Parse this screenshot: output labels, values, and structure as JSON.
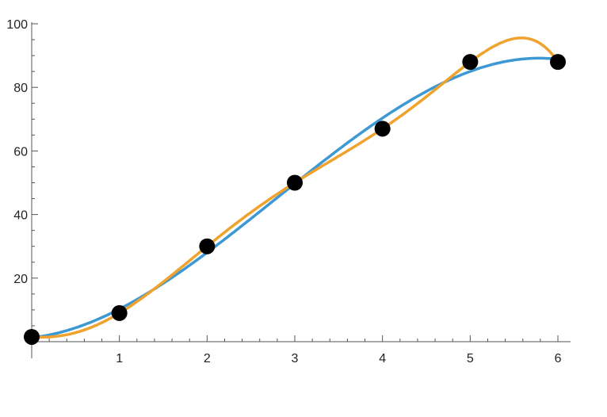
{
  "chart_data": {
    "type": "line",
    "title": "",
    "xlabel": "",
    "ylabel": "",
    "xlim": [
      0,
      6.15
    ],
    "ylim": [
      0,
      100
    ],
    "x_ticks": [
      "1",
      "2",
      "3",
      "4",
      "5",
      "6"
    ],
    "y_ticks": [
      "20",
      "40",
      "60",
      "80",
      "100"
    ],
    "grid": false,
    "points": {
      "x": [
        0,
        1,
        2,
        3,
        4,
        5,
        6
      ],
      "y": [
        1.5,
        9,
        30,
        50,
        67,
        88,
        88
      ],
      "color": "#000000"
    },
    "series": [
      {
        "kind": "cubic least-squares fit",
        "color": "#3d98d3"
      },
      {
        "kind": "interpolating polynomial",
        "color": "#f0a22e"
      }
    ]
  }
}
